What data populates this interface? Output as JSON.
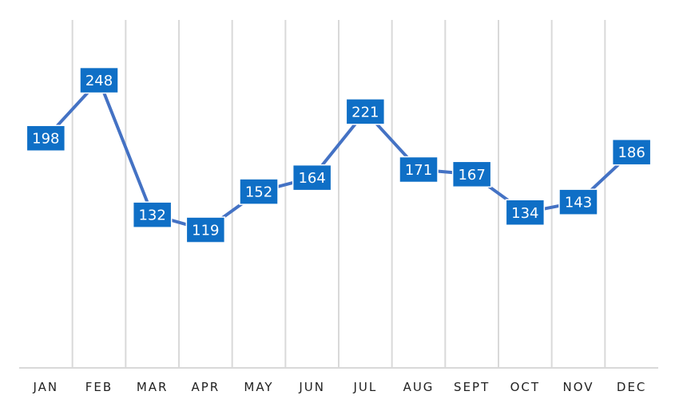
{
  "chart_data": {
    "type": "line",
    "title": "",
    "xlabel": "",
    "ylabel": "",
    "categories": [
      "JAN",
      "FEB",
      "MAR",
      "APR",
      "MAY",
      "JUN",
      "JUL",
      "AUG",
      "SEPT",
      "OCT",
      "NOV",
      "DEC"
    ],
    "series": [
      {
        "values": [
          198,
          248,
          132,
          119,
          152,
          164,
          221,
          171,
          167,
          134,
          143,
          186
        ]
      }
    ],
    "ylim": [
      0,
      300
    ],
    "grid": "vertical",
    "legend": "none",
    "data_labels": true,
    "y_axis_visible": false
  },
  "colors": {
    "line": "#4472C4",
    "label_box": "#0F6FC6",
    "label_border": "#ffffff",
    "label_text": "#ffffff",
    "gridline": "#D9D9D9",
    "axis": "#D9D9D9",
    "tick_text": "#222222"
  }
}
